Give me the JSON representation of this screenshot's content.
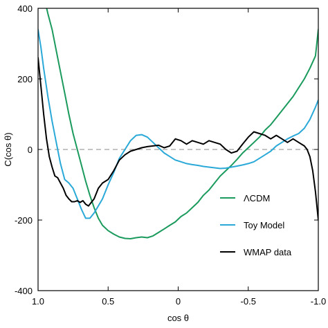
{
  "chart_data": {
    "type": "line",
    "title": "",
    "xlabel": "cos θ",
    "ylabel": "C(cos θ)",
    "xlim": [
      1.0,
      -1.0
    ],
    "ylim": [
      -400,
      400
    ],
    "x_ticks": [
      1.0,
      0.5,
      0,
      -0.5,
      -1.0
    ],
    "x_tick_labels": [
      "1.0",
      "0.5",
      "0",
      "-0.5",
      "-1.0"
    ],
    "y_ticks": [
      -400,
      -200,
      0,
      200,
      400
    ],
    "y_tick_labels": [
      "-400",
      "-200",
      "0",
      "200",
      "400"
    ],
    "zero_line": "dashed",
    "grid": false,
    "legend_position": "lower-right",
    "series": [
      {
        "name": "ΛCDM",
        "color": "#1a9a5c",
        "x": [
          1.0,
          0.97,
          0.95,
          0.93,
          0.9,
          0.87,
          0.84,
          0.81,
          0.78,
          0.75,
          0.72,
          0.69,
          0.66,
          0.63,
          0.6,
          0.57,
          0.54,
          0.5,
          0.46,
          0.42,
          0.38,
          0.34,
          0.3,
          0.26,
          0.22,
          0.18,
          0.14,
          0.1,
          0.06,
          0.02,
          -0.02,
          -0.06,
          -0.1,
          -0.14,
          -0.18,
          -0.22,
          -0.26,
          -0.3,
          -0.34,
          -0.38,
          -0.42,
          -0.46,
          -0.5,
          -0.54,
          -0.58,
          -0.62,
          -0.66,
          -0.7,
          -0.74,
          -0.78,
          -0.82,
          -0.86,
          -0.9,
          -0.94,
          -0.98,
          -1.0
        ],
        "y": [
          480,
          450,
          420,
          385,
          340,
          280,
          220,
          160,
          100,
          45,
          0,
          -45,
          -90,
          -130,
          -165,
          -195,
          -215,
          -230,
          -240,
          -248,
          -252,
          -253,
          -250,
          -248,
          -250,
          -245,
          -235,
          -225,
          -215,
          -205,
          -190,
          -180,
          -165,
          -150,
          -130,
          -115,
          -95,
          -75,
          -60,
          -45,
          -28,
          -10,
          5,
          20,
          35,
          55,
          70,
          90,
          110,
          130,
          150,
          175,
          200,
          230,
          265,
          340
        ]
      },
      {
        "name": "Toy Model",
        "color": "#2aa9d8",
        "x": [
          1.0,
          0.98,
          0.96,
          0.93,
          0.9,
          0.87,
          0.84,
          0.81,
          0.78,
          0.75,
          0.72,
          0.69,
          0.66,
          0.63,
          0.6,
          0.57,
          0.54,
          0.5,
          0.46,
          0.42,
          0.38,
          0.34,
          0.3,
          0.26,
          0.22,
          0.18,
          0.14,
          0.1,
          0.06,
          0.02,
          -0.02,
          -0.06,
          -0.1,
          -0.14,
          -0.18,
          -0.22,
          -0.26,
          -0.3,
          -0.34,
          -0.38,
          -0.42,
          -0.46,
          -0.5,
          -0.54,
          -0.58,
          -0.62,
          -0.66,
          -0.7,
          -0.74,
          -0.78,
          -0.82,
          -0.86,
          -0.9,
          -0.94,
          -0.98,
          -1.0
        ],
        "y": [
          340,
          290,
          230,
          150,
          80,
          20,
          -40,
          -85,
          -95,
          -110,
          -140,
          -170,
          -195,
          -195,
          -180,
          -160,
          -140,
          -100,
          -65,
          -25,
          0,
          25,
          40,
          42,
          35,
          20,
          5,
          -10,
          -20,
          -30,
          -35,
          -40,
          -43,
          -45,
          -48,
          -50,
          -52,
          -54,
          -53,
          -50,
          -47,
          -44,
          -40,
          -35,
          -25,
          -15,
          -5,
          10,
          20,
          30,
          38,
          45,
          60,
          85,
          120,
          140
        ]
      },
      {
        "name": "WMAP data",
        "color": "#000000",
        "x": [
          1.0,
          0.98,
          0.96,
          0.94,
          0.92,
          0.9,
          0.88,
          0.86,
          0.84,
          0.82,
          0.8,
          0.78,
          0.76,
          0.74,
          0.72,
          0.7,
          0.68,
          0.66,
          0.64,
          0.62,
          0.6,
          0.57,
          0.54,
          0.5,
          0.46,
          0.42,
          0.38,
          0.34,
          0.3,
          0.26,
          0.22,
          0.18,
          0.14,
          0.1,
          0.06,
          0.02,
          -0.02,
          -0.06,
          -0.1,
          -0.14,
          -0.18,
          -0.22,
          -0.26,
          -0.3,
          -0.34,
          -0.38,
          -0.42,
          -0.46,
          -0.5,
          -0.54,
          -0.58,
          -0.62,
          -0.66,
          -0.7,
          -0.74,
          -0.78,
          -0.82,
          -0.86,
          -0.9,
          -0.92,
          -0.94,
          -0.96,
          -0.98,
          -1.0
        ],
        "y": [
          260,
          180,
          100,
          30,
          -20,
          -50,
          -75,
          -80,
          -95,
          -110,
          -130,
          -140,
          -148,
          -148,
          -145,
          -150,
          -145,
          -155,
          -160,
          -150,
          -140,
          -110,
          -95,
          -85,
          -60,
          -30,
          -15,
          -5,
          0,
          5,
          8,
          10,
          12,
          5,
          10,
          30,
          25,
          15,
          25,
          20,
          15,
          25,
          20,
          15,
          0,
          -10,
          -5,
          15,
          35,
          50,
          45,
          40,
          30,
          40,
          30,
          20,
          30,
          20,
          10,
          0,
          -20,
          -60,
          -120,
          -200
        ]
      }
    ]
  }
}
